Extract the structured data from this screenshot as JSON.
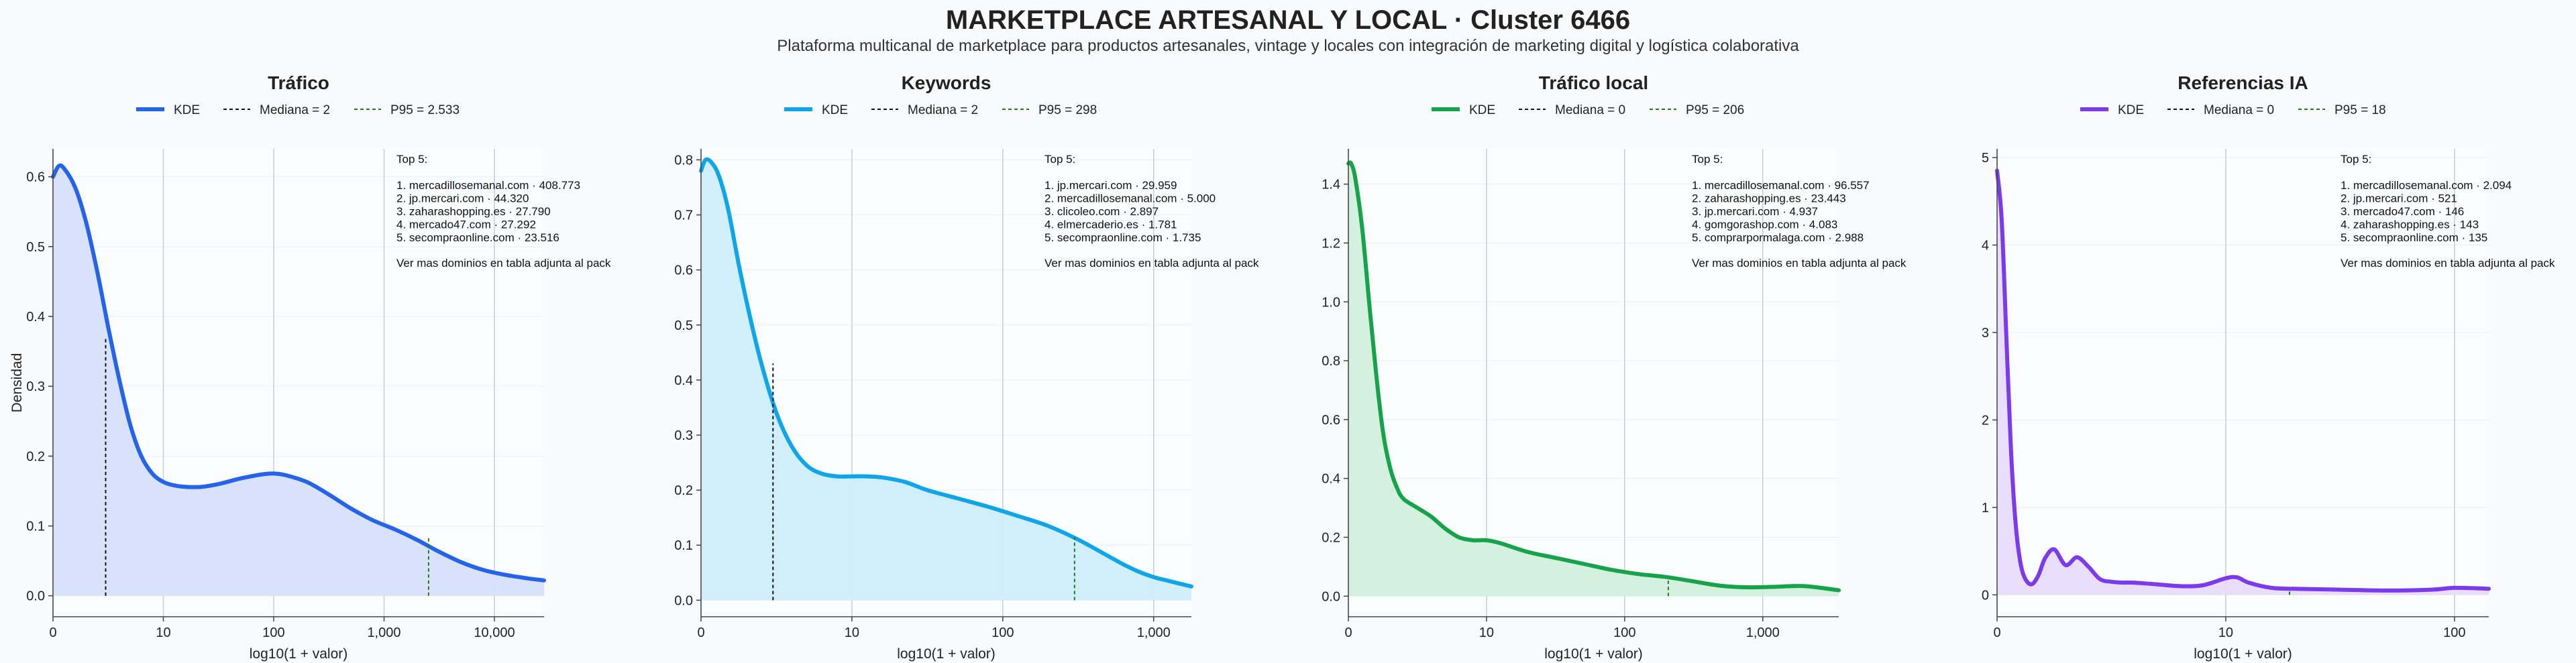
{
  "title": "MARKETPLACE ARTESANAL Y LOCAL · Cluster 6466",
  "subtitle": "Plataforma multicanal de marketplace para productos artesanales, vintage y locales con integración de marketing digital y logística colaborativa",
  "ylabel_shared": "Densidad",
  "chart_data": [
    {
      "type": "area",
      "title": "Tráfico",
      "xlabel": "log10(1 + valor)",
      "ylabel": "Densidad",
      "color": "#2563eb",
      "fill": "#d6e0fb",
      "x_scale": "log10(1+x)",
      "xlim": [
        0,
        4.45
      ],
      "ylim": [
        -0.03,
        0.64
      ],
      "yticks": [
        0.0,
        0.1,
        0.2,
        0.3,
        0.4,
        0.5,
        0.6
      ],
      "ytick_labels": [
        "0.0",
        "0.1",
        "0.2",
        "0.3",
        "0.4",
        "0.5",
        "0.6"
      ],
      "xticks": [
        0,
        1,
        2,
        3,
        4
      ],
      "xtick_labels": [
        "0",
        "10",
        "100",
        "1,000",
        "10,000"
      ],
      "legend": [
        "KDE",
        "Mediana = 2",
        "P95 = 2.533"
      ],
      "median": {
        "value": 2,
        "density": 0.37
      },
      "p95": {
        "value": 2533,
        "density": 0.085
      },
      "series": [
        {
          "name": "KDE",
          "x": [
            0,
            0.05,
            0.1,
            0.2,
            0.3,
            0.4,
            0.5,
            0.6,
            0.7,
            0.8,
            0.9,
            1.0,
            1.1,
            1.2,
            1.35,
            1.5,
            1.7,
            1.9,
            2.0,
            2.1,
            2.3,
            2.5,
            2.7,
            2.9,
            3.1,
            3.3,
            3.5,
            3.7,
            3.9,
            4.1,
            4.3,
            4.45
          ],
          "y": [
            0.6,
            0.615,
            0.612,
            0.585,
            0.535,
            0.465,
            0.385,
            0.31,
            0.245,
            0.2,
            0.175,
            0.163,
            0.158,
            0.156,
            0.156,
            0.16,
            0.168,
            0.174,
            0.175,
            0.173,
            0.163,
            0.145,
            0.125,
            0.108,
            0.095,
            0.08,
            0.063,
            0.048,
            0.037,
            0.03,
            0.025,
            0.022
          ]
        }
      ],
      "annotation": {
        "header": "Top 5:",
        "lines": [
          "1. mercadillosemanal.com · 408.773",
          "2. jp.mercari.com · 44.320",
          "3. zaharashopping.es · 27.790",
          "4. mercado47.com · 27.292",
          "5. secompraonline.com · 23.516"
        ],
        "footer": "Ver mas dominios en tabla adjunta al pack"
      }
    },
    {
      "type": "area",
      "title": "Keywords",
      "xlabel": "log10(1 + valor)",
      "ylabel": "",
      "color": "#0ea5e9",
      "fill": "#cfeefb",
      "x_scale": "log10(1+x)",
      "xlim": [
        0,
        3.25
      ],
      "ylim": [
        -0.03,
        0.82
      ],
      "yticks": [
        0.0,
        0.1,
        0.2,
        0.3,
        0.4,
        0.5,
        0.6,
        0.7,
        0.8
      ],
      "ytick_labels": [
        "0.0",
        "0.1",
        "0.2",
        "0.3",
        "0.4",
        "0.5",
        "0.6",
        "0.7",
        "0.8"
      ],
      "xticks": [
        0,
        1,
        2,
        3
      ],
      "xtick_labels": [
        "0",
        "10",
        "100",
        "1,000"
      ],
      "legend": [
        "KDE",
        "Mediana = 2",
        "P95 = 298"
      ],
      "median": {
        "value": 2,
        "density": 0.43
      },
      "p95": {
        "value": 298,
        "density": 0.115
      },
      "series": [
        {
          "name": "KDE",
          "x": [
            0,
            0.03,
            0.07,
            0.12,
            0.18,
            0.25,
            0.32,
            0.4,
            0.5,
            0.6,
            0.7,
            0.8,
            0.9,
            1.0,
            1.1,
            1.2,
            1.35,
            1.5,
            1.7,
            1.9,
            2.1,
            2.3,
            2.5,
            2.7,
            2.8,
            2.9,
            3.0,
            3.1,
            3.25
          ],
          "y": [
            0.78,
            0.8,
            0.795,
            0.77,
            0.71,
            0.61,
            0.52,
            0.43,
            0.34,
            0.28,
            0.245,
            0.23,
            0.225,
            0.225,
            0.225,
            0.223,
            0.215,
            0.2,
            0.185,
            0.17,
            0.153,
            0.135,
            0.11,
            0.08,
            0.065,
            0.052,
            0.042,
            0.035,
            0.025
          ]
        }
      ],
      "annotation": {
        "header": "Top 5:",
        "lines": [
          "1. jp.mercari.com · 29.959",
          "2. mercadillosemanal.com · 5.000",
          "3. clicoleo.com · 2.897",
          "4. elmercaderio.es · 1.781",
          "5. secompraonline.com · 1.735"
        ],
        "footer": "Ver mas dominios en tabla adjunta al pack"
      }
    },
    {
      "type": "area",
      "title": "Tráfico local",
      "xlabel": "log10(1 + valor)",
      "ylabel": "",
      "color": "#16a34a",
      "fill": "#d2efdc",
      "x_scale": "log10(1+x)",
      "xlim": [
        0,
        3.55
      ],
      "ylim": [
        -0.07,
        1.52
      ],
      "yticks": [
        0.0,
        0.2,
        0.4,
        0.6,
        0.8,
        1.0,
        1.2,
        1.4
      ],
      "ytick_labels": [
        "0.0",
        "0.2",
        "0.4",
        "0.6",
        "0.8",
        "1.0",
        "1.2",
        "1.4"
      ],
      "xticks": [
        0,
        1,
        2,
        3
      ],
      "xtick_labels": [
        "0",
        "10",
        "100",
        "1,000"
      ],
      "legend": [
        "KDE",
        "Mediana = 0",
        "P95 = 206"
      ],
      "median": {
        "value": 0,
        "density": 1.47
      },
      "p95": {
        "value": 206,
        "density": 0.062
      },
      "series": [
        {
          "name": "KDE",
          "x": [
            0,
            0.02,
            0.05,
            0.1,
            0.15,
            0.2,
            0.25,
            0.3,
            0.35,
            0.4,
            0.5,
            0.6,
            0.7,
            0.8,
            0.9,
            1.0,
            1.1,
            1.3,
            1.5,
            1.7,
            1.9,
            2.1,
            2.3,
            2.5,
            2.7,
            2.9,
            3.1,
            3.3,
            3.55
          ],
          "y": [
            1.47,
            1.47,
            1.42,
            1.25,
            1.0,
            0.76,
            0.56,
            0.44,
            0.37,
            0.33,
            0.3,
            0.27,
            0.23,
            0.2,
            0.19,
            0.19,
            0.18,
            0.15,
            0.13,
            0.11,
            0.09,
            0.075,
            0.065,
            0.05,
            0.035,
            0.03,
            0.032,
            0.034,
            0.02
          ]
        }
      ],
      "annotation": {
        "header": "Top 5:",
        "lines": [
          "1. mercadillosemanal.com · 96.557",
          "2. zaharashopping.es · 23.443",
          "3. jp.mercari.com · 4.937",
          "4. gomgorashop.com · 4.083",
          "5. comprarpormalaga.com · 2.988"
        ],
        "footer": "Ver mas dominios en tabla adjunta al pack"
      }
    },
    {
      "type": "area",
      "title": "Referencias IA",
      "xlabel": "log10(1 + valor)",
      "ylabel": "",
      "color": "#7c3aed",
      "fill": "#e7dbfa",
      "x_scale": "log10(1+x)",
      "xlim": [
        0,
        2.15
      ],
      "ylim": [
        -0.25,
        5.1
      ],
      "yticks": [
        0,
        1,
        2,
        3,
        4,
        5
      ],
      "ytick_labels": [
        "0",
        "1",
        "2",
        "3",
        "4",
        "5"
      ],
      "xticks": [
        0,
        1,
        2
      ],
      "xtick_labels": [
        "0",
        "10",
        "100"
      ],
      "legend": [
        "KDE",
        "Mediana = 0",
        "P95 = 18"
      ],
      "median": {
        "value": 0,
        "density": 4.85
      },
      "p95": {
        "value": 18,
        "density": 0.07
      },
      "series": [
        {
          "name": "KDE",
          "x": [
            0,
            0.02,
            0.04,
            0.06,
            0.08,
            0.1,
            0.12,
            0.15,
            0.18,
            0.21,
            0.25,
            0.3,
            0.35,
            0.4,
            0.45,
            0.5,
            0.55,
            0.6,
            0.7,
            0.8,
            0.9,
            1.0,
            1.05,
            1.1,
            1.2,
            1.3,
            1.5,
            1.7,
            1.9,
            2.0,
            2.15
          ],
          "y": [
            4.85,
            4.3,
            3.0,
            1.7,
            0.85,
            0.4,
            0.2,
            0.12,
            0.22,
            0.42,
            0.52,
            0.34,
            0.43,
            0.32,
            0.18,
            0.15,
            0.14,
            0.14,
            0.12,
            0.1,
            0.11,
            0.19,
            0.2,
            0.14,
            0.08,
            0.07,
            0.06,
            0.05,
            0.06,
            0.08,
            0.07
          ]
        }
      ],
      "annotation": {
        "header": "Top 5:",
        "lines": [
          "1. mercadillosemanal.com · 2.094",
          "2. jp.mercari.com · 521",
          "3. mercado47.com · 146",
          "4. zaharashopping.es · 143",
          "5. secompraonline.com · 135"
        ],
        "footer": "Ver mas dominios en tabla adjunta al pack"
      }
    }
  ]
}
